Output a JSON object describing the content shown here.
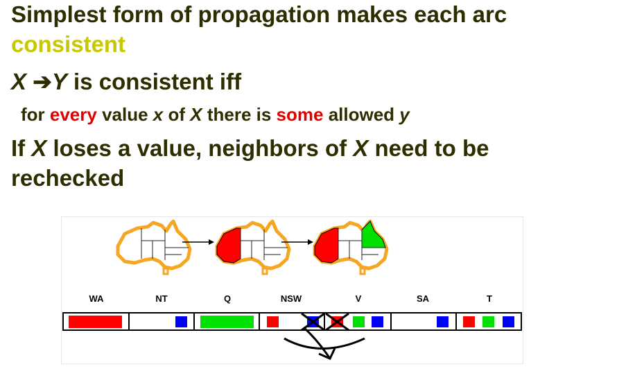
{
  "slide": {
    "line1": "Simplest form of propagation makes each arc",
    "line1b": "consistent",
    "line2": {
      "x": "X",
      "arrow": "➔",
      "y": "Y",
      "rest": " is consistent iff"
    },
    "line3": {
      "p1": "for ",
      "every": "every",
      "p2": " value ",
      "x": "x",
      "p3": " of ",
      "X": "X",
      "p4": " there is ",
      "some": "some",
      "p5": " allowed ",
      "y": "y"
    },
    "line4": {
      "p1": "If ",
      "X1": "X",
      "p2": " loses a value, neighbors of ",
      "X2": "X",
      "p3": " need to be"
    },
    "line5": "rechecked"
  },
  "figure": {
    "variables": [
      "WA",
      "NT",
      "Q",
      "NSW",
      "V",
      "SA",
      "T"
    ],
    "domains": [
      [
        "red"
      ],
      [
        "blue"
      ],
      [
        "green"
      ],
      [
        "red",
        "blue-crossed"
      ],
      [
        "red-crossed",
        "green",
        "blue"
      ],
      [
        "blue"
      ],
      [
        "red",
        "green",
        "blue"
      ]
    ],
    "colors": {
      "text": "#2d2d00",
      "highlight": "#c8c800",
      "emphasis": "#e00000",
      "red": "#ff0000",
      "green": "#00e000",
      "blue": "#0000ff",
      "map_outline": "#f5a623"
    }
  }
}
